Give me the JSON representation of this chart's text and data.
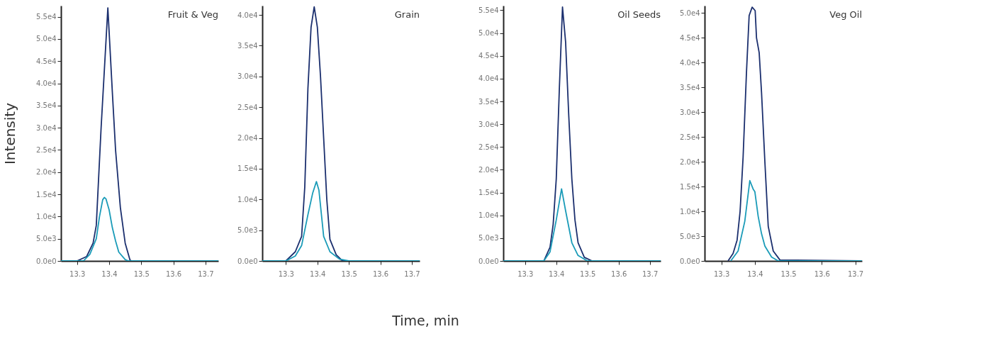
{
  "chart_data": [
    {
      "type": "line",
      "title": "Fruit & Veg",
      "ylabel": "Intensity",
      "xlim": [
        13.25,
        13.74
      ],
      "xticks": [
        13.3,
        13.4,
        13.5,
        13.6,
        13.7
      ],
      "ylim": [
        0,
        57500
      ],
      "yticks": [
        {
          "value": 0,
          "label": "0.0e0"
        },
        {
          "value": 5000,
          "label": "5.0e3"
        },
        {
          "value": 10000,
          "label": "1.0e4"
        },
        {
          "value": 15000,
          "label": "1.5e4"
        },
        {
          "value": 20000,
          "label": "2.0e4"
        },
        {
          "value": 25000,
          "label": "2.5e4"
        },
        {
          "value": 30000,
          "label": "3.0e4"
        },
        {
          "value": 35000,
          "label": "3.5e4"
        },
        {
          "value": 40000,
          "label": "4.0e4"
        },
        {
          "value": 45000,
          "label": "4.5e4"
        },
        {
          "value": 50000,
          "label": "5.0e4"
        },
        {
          "value": 55000,
          "label": "5.5e4"
        }
      ],
      "grid": false,
      "legend": false,
      "series": [
        {
          "color": "#1b2f6e",
          "x": [
            13.25,
            13.3,
            13.33,
            13.35,
            13.36,
            13.375,
            13.396,
            13.41,
            13.42,
            13.435,
            13.45,
            13.465,
            13.47,
            13.74
          ],
          "values": [
            0,
            0,
            1000,
            4000,
            8000,
            30000,
            57000,
            38000,
            25000,
            12000,
            4000,
            200,
            0,
            0
          ]
        },
        {
          "color": "#1a9bb8",
          "x": [
            13.25,
            13.32,
            13.34,
            13.36,
            13.37,
            13.38,
            13.385,
            13.39,
            13.4,
            13.41,
            13.42,
            13.43,
            13.45,
            13.46,
            13.74
          ],
          "values": [
            0,
            0,
            1500,
            5000,
            10000,
            13800,
            14300,
            14000,
            11500,
            7500,
            4500,
            2000,
            300,
            0,
            0
          ]
        }
      ]
    },
    {
      "type": "line",
      "title": "Grain",
      "xlabel": "Time, min",
      "xlim": [
        13.225,
        13.725
      ],
      "xticks": [
        13.3,
        13.4,
        13.5,
        13.6,
        13.7
      ],
      "ylim": [
        0,
        41500
      ],
      "yticks": [
        {
          "value": 0,
          "label": "0.0e0"
        },
        {
          "value": 5000,
          "label": "5.0e3"
        },
        {
          "value": 10000,
          "label": "1.0e4"
        },
        {
          "value": 15000,
          "label": "1.5e4"
        },
        {
          "value": 20000,
          "label": "2.0e4"
        },
        {
          "value": 25000,
          "label": "2.5e4"
        },
        {
          "value": 30000,
          "label": "3.0e4"
        },
        {
          "value": 35000,
          "label": "3.5e4"
        },
        {
          "value": 40000,
          "label": "4.0e4"
        }
      ],
      "grid": false,
      "legend": false,
      "series": [
        {
          "color": "#1b2f6e",
          "x": [
            13.225,
            13.3,
            13.33,
            13.35,
            13.36,
            13.37,
            13.38,
            13.39,
            13.4,
            13.41,
            13.42,
            13.43,
            13.44,
            13.46,
            13.48,
            13.725
          ],
          "values": [
            0,
            0,
            1500,
            4000,
            12000,
            28000,
            38000,
            41300,
            38000,
            30000,
            20000,
            10000,
            3500,
            1000,
            0,
            0
          ]
        },
        {
          "color": "#1a9bb8",
          "x": [
            13.225,
            13.3,
            13.33,
            13.35,
            13.37,
            13.385,
            13.397,
            13.405,
            13.42,
            13.44,
            13.47,
            13.5,
            13.725
          ],
          "values": [
            0,
            0,
            800,
            2500,
            7500,
            11000,
            12900,
            11500,
            4000,
            1500,
            300,
            0,
            0
          ]
        }
      ]
    },
    {
      "type": "line",
      "title": "Oil Seeds",
      "xlim": [
        13.23,
        13.735
      ],
      "xticks": [
        13.3,
        13.4,
        13.5,
        13.6,
        13.7
      ],
      "ylim": [
        0,
        56000
      ],
      "yticks": [
        {
          "value": 0,
          "label": "0.0e0"
        },
        {
          "value": 5000,
          "label": "5.0e3"
        },
        {
          "value": 10000,
          "label": "1.0e4"
        },
        {
          "value": 15000,
          "label": "1.5e4"
        },
        {
          "value": 20000,
          "label": "2.0e4"
        },
        {
          "value": 25000,
          "label": "2.5e4"
        },
        {
          "value": 30000,
          "label": "3.0e4"
        },
        {
          "value": 35000,
          "label": "3.5e4"
        },
        {
          "value": 40000,
          "label": "4.0e4"
        },
        {
          "value": 45000,
          "label": "4.5e4"
        },
        {
          "value": 50000,
          "label": "5.0e4"
        },
        {
          "value": 55000,
          "label": "5.5e4"
        }
      ],
      "grid": false,
      "legend": false,
      "series": [
        {
          "color": "#1b2f6e",
          "x": [
            13.23,
            13.36,
            13.38,
            13.39,
            13.4,
            13.41,
            13.42,
            13.43,
            13.44,
            13.45,
            13.46,
            13.47,
            13.49,
            13.515,
            13.735
          ],
          "values": [
            0,
            0,
            3000,
            8000,
            18000,
            38000,
            55700,
            48000,
            32000,
            18000,
            9000,
            4000,
            800,
            0,
            0
          ]
        },
        {
          "color": "#1a9bb8",
          "x": [
            13.23,
            13.36,
            13.38,
            13.4,
            13.417,
            13.43,
            13.45,
            13.47,
            13.5,
            13.735
          ],
          "values": [
            0,
            0,
            2000,
            9000,
            15800,
            11000,
            4000,
            1200,
            0,
            0
          ]
        }
      ]
    },
    {
      "type": "line",
      "title": "Veg Oil",
      "xlim": [
        13.25,
        13.72
      ],
      "xticks": [
        13.3,
        13.4,
        13.5,
        13.6,
        13.7
      ],
      "ylim": [
        0,
        51500
      ],
      "yticks": [
        {
          "value": 0,
          "label": "0.0e0"
        },
        {
          "value": 5000,
          "label": "5.0e3"
        },
        {
          "value": 10000,
          "label": "1.0e4"
        },
        {
          "value": 15000,
          "label": "1.5e4"
        },
        {
          "value": 20000,
          "label": "2.0e4"
        },
        {
          "value": 25000,
          "label": "2.5e4"
        },
        {
          "value": 30000,
          "label": "3.0e4"
        },
        {
          "value": 35000,
          "label": "3.5e4"
        },
        {
          "value": 40000,
          "label": "4.0e4"
        },
        {
          "value": 45000,
          "label": "4.5e4"
        },
        {
          "value": 50000,
          "label": "5.0e4"
        }
      ],
      "grid": false,
      "legend": false,
      "series": [
        {
          "color": "#1b2f6e",
          "x": [
            13.32,
            13.335,
            13.347,
            13.356,
            13.365,
            13.375,
            13.383,
            13.392,
            13.401,
            13.405,
            13.413,
            13.42,
            13.43,
            13.44,
            13.455,
            13.475,
            13.72
          ],
          "values": [
            0,
            1500,
            4200,
            10000,
            21000,
            38000,
            49500,
            51200,
            50500,
            45000,
            42000,
            34000,
            20000,
            7000,
            2000,
            200,
            0
          ]
        },
        {
          "color": "#1a9bb8",
          "x": [
            13.328,
            13.35,
            13.37,
            13.385,
            13.395,
            13.4,
            13.41,
            13.42,
            13.43,
            13.45,
            13.47,
            13.72
          ],
          "values": [
            0,
            2000,
            8000,
            16200,
            14500,
            14000,
            9000,
            5500,
            3000,
            800,
            0,
            0
          ]
        }
      ]
    }
  ]
}
